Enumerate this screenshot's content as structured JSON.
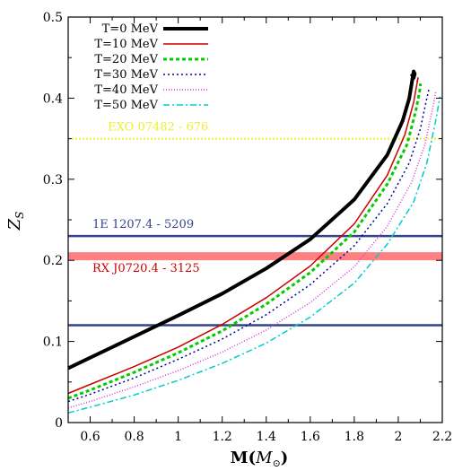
{
  "chart_data": {
    "type": "line",
    "xlabel_main": "M(",
    "xlabel_sub": "M",
    "xlabel_sun": "⊙",
    "xlabel_close": ")",
    "ylabel_main": "Z",
    "ylabel_sub": "S",
    "xlim": [
      0.5,
      2.2
    ],
    "ylim": [
      0,
      0.5
    ],
    "x_ticks": [
      0.6,
      0.8,
      1.0,
      1.2,
      1.4,
      1.6,
      1.8,
      2.0,
      2.2
    ],
    "x_tick_labels": [
      "0.6",
      "0.8",
      "1",
      "1.2",
      "1.4",
      "1.6",
      "1.8",
      "2",
      "2.2"
    ],
    "y_ticks": [
      0,
      0.1,
      0.2,
      0.3,
      0.4,
      0.5
    ],
    "y_tick_labels": [
      "0",
      "0.1",
      "0.2",
      "0.3",
      "0.4",
      "0.5"
    ],
    "grid": false,
    "legend_position": "top-left",
    "series": [
      {
        "name": "T=0 MeV",
        "color": "#000000",
        "width": 4,
        "dash": "",
        "x": [
          0.5,
          0.6,
          0.8,
          1.0,
          1.2,
          1.4,
          1.6,
          1.8,
          1.95,
          2.02,
          2.05,
          2.065,
          2.07,
          2.075,
          2.07,
          2.06
        ],
        "y": [
          0.067,
          0.08,
          0.106,
          0.132,
          0.159,
          0.19,
          0.226,
          0.275,
          0.33,
          0.372,
          0.4,
          0.425,
          0.433,
          0.43,
          0.425,
          0.43
        ]
      },
      {
        "name": "T=10 MeV",
        "color": "#cc0000",
        "width": 1.5,
        "dash": "",
        "x": [
          0.5,
          0.6,
          0.8,
          1.0,
          1.2,
          1.4,
          1.6,
          1.8,
          1.95,
          2.03,
          2.07,
          2.085,
          2.09,
          2.085
        ],
        "y": [
          0.036,
          0.047,
          0.069,
          0.093,
          0.121,
          0.154,
          0.193,
          0.245,
          0.305,
          0.355,
          0.395,
          0.418,
          0.425,
          0.42
        ]
      },
      {
        "name": "T=20 MeV",
        "color": "#00cc00",
        "width": 3,
        "dash": "4,3",
        "x": [
          0.5,
          0.6,
          0.8,
          1.0,
          1.2,
          1.4,
          1.6,
          1.8,
          1.95,
          2.04,
          2.08,
          2.1,
          2.1
        ],
        "y": [
          0.03,
          0.04,
          0.062,
          0.086,
          0.113,
          0.146,
          0.185,
          0.235,
          0.294,
          0.343,
          0.385,
          0.413,
          0.418
        ]
      },
      {
        "name": "T=30 MeV",
        "color": "#000099",
        "width": 1.5,
        "dash": "2,3",
        "x": [
          0.5,
          0.6,
          0.8,
          1.0,
          1.2,
          1.4,
          1.6,
          1.8,
          1.95,
          2.05,
          2.1,
          2.13,
          2.14
        ],
        "y": [
          0.026,
          0.035,
          0.055,
          0.078,
          0.103,
          0.133,
          0.17,
          0.218,
          0.27,
          0.32,
          0.362,
          0.4,
          0.412
        ]
      },
      {
        "name": "T=40 MeV",
        "color": "#dd33dd",
        "width": 1.5,
        "dash": "1,2",
        "x": [
          0.5,
          0.6,
          0.8,
          1.0,
          1.2,
          1.4,
          1.6,
          1.8,
          1.95,
          2.06,
          2.12,
          2.16,
          2.17
        ],
        "y": [
          0.018,
          0.026,
          0.044,
          0.064,
          0.087,
          0.114,
          0.148,
          0.192,
          0.242,
          0.296,
          0.342,
          0.392,
          0.408
        ]
      },
      {
        "name": "T=50 MeV",
        "color": "#00cccc",
        "width": 1.5,
        "dash": "7,3,2,3",
        "x": [
          0.5,
          0.6,
          0.8,
          1.0,
          1.2,
          1.4,
          1.6,
          1.8,
          1.95,
          2.07,
          2.13,
          2.17,
          2.19
        ],
        "y": [
          0.012,
          0.019,
          0.034,
          0.052,
          0.073,
          0.098,
          0.13,
          0.172,
          0.22,
          0.272,
          0.32,
          0.372,
          0.402
        ]
      }
    ],
    "bands": [
      {
        "label": "EXO 07482 - 676",
        "y": 0.35,
        "color": "#eeee33",
        "width": 2,
        "dash": "2,2",
        "label_x": 0.68,
        "label_y": 0.36
      },
      {
        "label": "1E 1207.4 - 5209",
        "y": 0.23,
        "color": "#334488",
        "width": 2.5,
        "dash": "",
        "label_x": 0.61,
        "label_y": 0.24
      },
      {
        "label": "RX J0720.4 - 3125",
        "y": 0.205,
        "color": "#ff8080",
        "width": 9,
        "dash": "",
        "label_x": 0.61,
        "label_y": 0.186,
        "label_color": "#cc0000"
      },
      {
        "label": "",
        "y": 0.12,
        "color": "#334488",
        "width": 2.5,
        "dash": ""
      }
    ]
  }
}
